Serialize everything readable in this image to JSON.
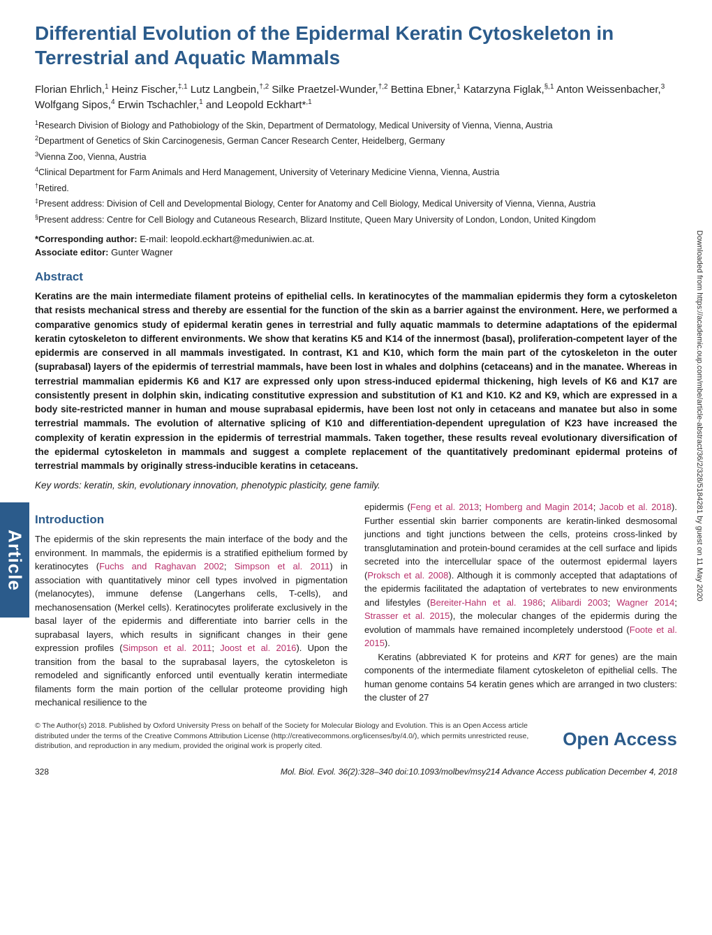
{
  "title": "Differential Evolution of the Epidermal Keratin Cytoskeleton in Terrestrial and Aquatic Mammals",
  "authors_html": "Florian Ehrlich,<sup>1</sup> Heinz Fischer,<sup>‡,1</sup> Lutz Langbein,<sup>†,2</sup> Silke Praetzel-Wunder,<sup>†,2</sup> Bettina Ebner,<sup>1</sup> Katarzyna Figlak,<sup>§,1</sup> Anton Weissenbacher,<sup>3</sup> Wolfgang Sipos,<sup>4</sup> Erwin Tschachler,<sup>1</sup> and Leopold Eckhart*<sup>,1</sup>",
  "affiliations": [
    "<sup>1</sup>Research Division of Biology and Pathobiology of the Skin, Department of Dermatology, Medical University of Vienna, Vienna, Austria",
    "<sup>2</sup>Department of Genetics of Skin Carcinogenesis, German Cancer Research Center, Heidelberg, Germany",
    "<sup>3</sup>Vienna Zoo, Vienna, Austria",
    "<sup>4</sup>Clinical Department for Farm Animals and Herd Management, University of Veterinary Medicine Vienna, Vienna, Austria",
    "<sup>†</sup>Retired.",
    "<sup>‡</sup>Present address: Division of Cell and Developmental Biology, Center for Anatomy and Cell Biology, Medical University of Vienna, Vienna, Austria",
    "<sup>§</sup>Present address: Centre for Cell Biology and Cutaneous Research, Blizard Institute, Queen Mary University of London, London, United Kingdom"
  ],
  "corresponding_label": "*Corresponding author:",
  "corresponding_value": " E-mail: leopold.eckhart@meduniwien.ac.at.",
  "editor_label": "Associate editor:",
  "editor_value": " Gunter Wagner",
  "abstract_heading": "Abstract",
  "abstract_text": "Keratins are the main intermediate filament proteins of epithelial cells. In keratinocytes of the mammalian epidermis they form a cytoskeleton that resists mechanical stress and thereby are essential for the function of the skin as a barrier against the environment. Here, we performed a comparative genomics study of epidermal keratin genes in terrestrial and fully aquatic mammals to determine adaptations of the epidermal keratin cytoskeleton to different environments. We show that keratins K5 and K14 of the innermost (basal), proliferation-competent layer of the epidermis are conserved in all mammals investigated. In contrast, K1 and K10, which form the main part of the cytoskeleton in the outer (suprabasal) layers of the epidermis of terrestrial mammals, have been lost in whales and dolphins (cetaceans) and in the manatee. Whereas in terrestrial mammalian epidermis K6 and K17 are expressed only upon stress-induced epidermal thickening, high levels of K6 and K17 are consistently present in dolphin skin, indicating constitutive expression and substitution of K1 and K10. K2 and K9, which are expressed in a body site-restricted manner in human and mouse suprabasal epidermis, have been lost not only in cetaceans and manatee but also in some terrestrial mammals. The evolution of alternative splicing of K10 and differentiation-dependent upregulation of K23 have increased the complexity of keratin expression in the epidermis of terrestrial mammals. Taken together, these results reveal evolutionary diversification of the epidermal cytoskeleton in mammals and suggest a complete replacement of the quantitatively predominant epidermal proteins of terrestrial mammals by originally stress-inducible keratins in cetaceans.",
  "keywords_label": "Key words:",
  "keywords_value": " keratin, skin, evolutionary innovation, phenotypic plasticity, gene family.",
  "intro_heading": "Introduction",
  "intro_col1_html": "The epidermis of the skin represents the main interface of the body and the environment. In mammals, the epidermis is a stratified epithelium formed by keratinocytes (<span class=\"citation\">Fuchs and Raghavan 2002</span>; <span class=\"citation\">Simpson et al. 2011</span>) in association with quantitatively minor cell types involved in pigmentation (melanocytes), immune defense (Langerhans cells, T-cells), and mechanosensation (Merkel cells). Keratinocytes proliferate exclusively in the basal layer of the epidermis and differentiate into barrier cells in the suprabasal layers, which results in significant changes in their gene expression profiles (<span class=\"citation\">Simpson et al. 2011</span>; <span class=\"citation\">Joost et al. 2016</span>). Upon the transition from the basal to the suprabasal layers, the cytoskeleton is remodeled and significantly enforced until eventually keratin intermediate filaments form the main portion of the cellular proteome providing high mechanical resilience to the",
  "intro_col2_html": "epidermis (<span class=\"citation\">Feng et al. 2013</span>; <span class=\"citation\">Homberg and Magin 2014</span>; <span class=\"citation\">Jacob et al. 2018</span>). Further essential skin barrier components are keratin-linked desmosomal junctions and tight junctions between the cells, proteins cross-linked by transglutamination and protein-bound ceramides at the cell surface and lipids secreted into the intercellular space of the outermost epidermal layers (<span class=\"citation\">Proksch et al. 2008</span>). Although it is commonly accepted that adaptations of the epidermis facilitated the adaptation of vertebrates to new environments and lifestyles (<span class=\"citation\">Bereiter-Hahn et al. 1986</span>; <span class=\"citation\">Alibardi 2003</span>; <span class=\"citation\">Wagner 2014</span>; <span class=\"citation\">Strasser et al. 2015</span>), the molecular changes of the epidermis during the evolution of mammals have remained incompletely understood (<span class=\"citation\">Foote et al. 2015</span>).<br>&nbsp;&nbsp;&nbsp;Keratins (abbreviated K for proteins and <i>KRT</i> for genes) are the main components of the intermediate filament cytoskeleton of epithelial cells. The human genome contains 54 keratin genes which are arranged in two clusters: the cluster of 27",
  "article_tab": "Article",
  "side_download_note": "Downloaded from https://academic.oup.com/mbe/article-abstract/36/2/328/5184281 by guest on 11 May 2020",
  "license_text": "© The Author(s) 2018. Published by Oxford University Press on behalf of the Society for Molecular Biology and Evolution. This is an Open Access article distributed under the terms of the Creative Commons Attribution License (http://creativecommons.org/licenses/by/4.0/), which permits unrestricted reuse, distribution, and reproduction in any medium, provided the original work is properly cited.",
  "open_access": "Open Access",
  "page_number": "328",
  "journal_citation": "Mol. Biol. Evol. 36(2):328–340  doi:10.1093/molbev/msy214  Advance Access publication December 4, 2018",
  "colors": {
    "accent": "#2b5b8b",
    "citation": "#b8306b",
    "text": "#1a1a1a",
    "background": "#ffffff"
  }
}
